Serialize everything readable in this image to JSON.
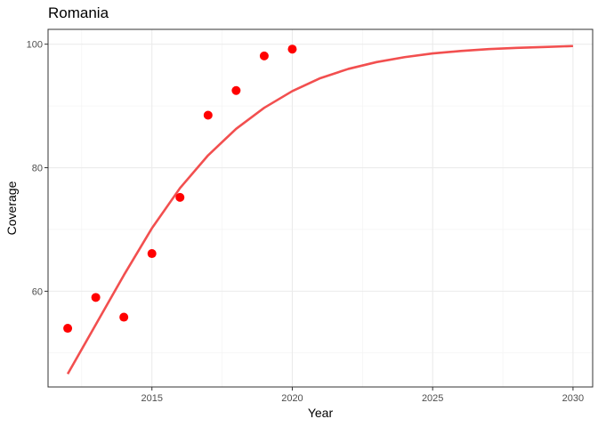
{
  "chart_data": {
    "type": "scatter",
    "title": "Romania",
    "xlabel": "Year",
    "ylabel": "Coverage",
    "xlim": [
      2011.3,
      2030.7
    ],
    "ylim": [
      44.5,
      102.4
    ],
    "xticks": [
      2015,
      2020,
      2025,
      2030
    ],
    "yticks": [
      60,
      80,
      100
    ],
    "grid": true,
    "points": {
      "color": "#ff0000",
      "x": [
        2012,
        2013,
        2014,
        2015,
        2016,
        2017,
        2018,
        2019,
        2020
      ],
      "y": [
        54.0,
        59.0,
        55.8,
        66.1,
        75.2,
        88.5,
        92.5,
        98.1,
        99.2
      ]
    },
    "fit_line": {
      "type": "line",
      "color": "#f24f4f",
      "x": [
        2012,
        2013,
        2014,
        2015,
        2016,
        2017,
        2018,
        2019,
        2020,
        2021,
        2022,
        2023,
        2024,
        2025,
        2026,
        2027,
        2028,
        2029,
        2030
      ],
      "y": [
        46.6,
        54.6,
        62.6,
        70.2,
        76.7,
        82.0,
        86.3,
        89.7,
        92.4,
        94.5,
        96.0,
        97.1,
        97.9,
        98.5,
        98.9,
        99.2,
        99.4,
        99.55,
        99.7
      ]
    }
  }
}
